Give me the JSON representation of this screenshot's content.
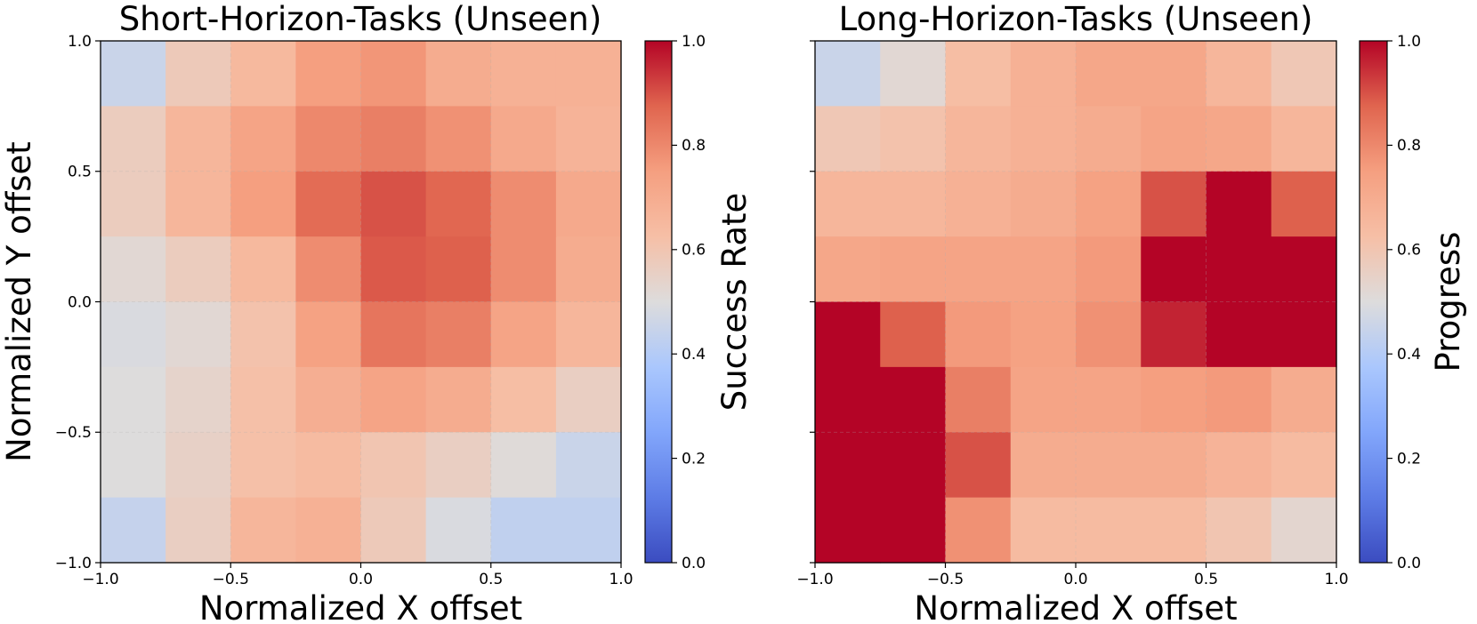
{
  "chart_data": [
    {
      "type": "heatmap",
      "title": "Short-Horizon-Tasks (Unseen)",
      "xlabel": "Normalized X offset",
      "ylabel": "Normalized Y offset",
      "xlim": [
        -1.0,
        1.0
      ],
      "ylim": [
        -1.0,
        1.0
      ],
      "xticks": [
        "−1.0",
        "−0.5",
        "0.0",
        "0.5",
        "1.0"
      ],
      "yticks": [
        "−1.0",
        "−0.5",
        "0.0",
        "0.5",
        "1.0"
      ],
      "grid_cols": 8,
      "grid_rows": 8,
      "colorbar": {
        "label": "Success Rate",
        "range": [
          0.0,
          1.0
        ],
        "ticks": [
          "0.0",
          "0.2",
          "0.4",
          "0.6",
          "0.8",
          "1.0"
        ],
        "colormap": "coolwarm"
      },
      "values_top_to_bottom": [
        [
          0.45,
          0.58,
          0.65,
          0.75,
          0.77,
          0.7,
          0.68,
          0.68
        ],
        [
          0.57,
          0.66,
          0.73,
          0.8,
          0.82,
          0.78,
          0.71,
          0.67
        ],
        [
          0.57,
          0.66,
          0.75,
          0.86,
          0.9,
          0.87,
          0.79,
          0.71
        ],
        [
          0.52,
          0.57,
          0.65,
          0.79,
          0.89,
          0.88,
          0.79,
          0.7
        ],
        [
          0.49,
          0.52,
          0.61,
          0.74,
          0.84,
          0.82,
          0.73,
          0.66
        ],
        [
          0.5,
          0.54,
          0.62,
          0.69,
          0.73,
          0.7,
          0.63,
          0.56
        ],
        [
          0.5,
          0.55,
          0.62,
          0.64,
          0.6,
          0.56,
          0.51,
          0.45
        ],
        [
          0.44,
          0.56,
          0.66,
          0.68,
          0.58,
          0.49,
          0.43,
          0.43
        ]
      ]
    },
    {
      "type": "heatmap",
      "title": "Long-Horizon-Tasks (Unseen)",
      "xlabel": "Normalized X offset",
      "ylabel": "",
      "xlim": [
        -1.0,
        1.0
      ],
      "ylim": [
        -1.0,
        1.0
      ],
      "xticks": [
        "−1.0",
        "−0.5",
        "0.0",
        "0.5",
        "1.0"
      ],
      "yticks": [],
      "grid_cols": 8,
      "grid_rows": 8,
      "colorbar": {
        "label": "Progress",
        "range": [
          0.0,
          1.0
        ],
        "ticks": [
          "0.0",
          "0.2",
          "0.4",
          "0.6",
          "0.8",
          "1.0"
        ],
        "colormap": "coolwarm"
      },
      "values_top_to_bottom": [
        [
          0.45,
          0.52,
          0.63,
          0.68,
          0.72,
          0.72,
          0.66,
          0.59
        ],
        [
          0.59,
          0.61,
          0.66,
          0.68,
          0.7,
          0.73,
          0.72,
          0.66
        ],
        [
          0.66,
          0.66,
          0.68,
          0.7,
          0.74,
          0.9,
          1.0,
          0.88
        ],
        [
          0.72,
          0.73,
          0.73,
          0.73,
          0.76,
          1.0,
          1.0,
          1.0
        ],
        [
          1.0,
          0.88,
          0.76,
          0.74,
          0.78,
          0.96,
          1.0,
          1.0
        ],
        [
          1.0,
          1.0,
          0.82,
          0.73,
          0.73,
          0.75,
          0.76,
          0.7
        ],
        [
          1.0,
          1.0,
          0.9,
          0.7,
          0.7,
          0.7,
          0.67,
          0.64
        ],
        [
          1.0,
          1.0,
          0.78,
          0.64,
          0.64,
          0.64,
          0.6,
          0.53
        ]
      ]
    }
  ]
}
